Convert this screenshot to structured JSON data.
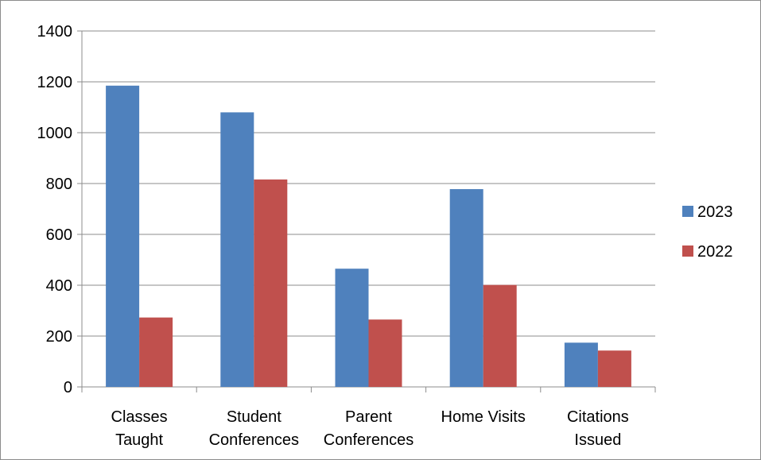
{
  "chart_data": {
    "type": "bar",
    "title": "",
    "xlabel": "",
    "ylabel": "",
    "ylim": [
      0,
      1400
    ],
    "yticks": [
      0,
      200,
      400,
      600,
      800,
      1000,
      1200,
      1400
    ],
    "grid": true,
    "legend_position": "right",
    "categories": [
      [
        "Classes",
        "Taught"
      ],
      [
        "Student",
        "Conferences"
      ],
      [
        "Parent",
        "Conferences"
      ],
      [
        "Home Visits"
      ],
      [
        "Citations",
        "Issued"
      ]
    ],
    "series": [
      {
        "name": "2023",
        "color": "#4f81bd",
        "values": [
          1185,
          1080,
          465,
          778,
          174
        ]
      },
      {
        "name": "2022",
        "color": "#c0504d",
        "values": [
          273,
          816,
          265,
          401,
          143
        ]
      }
    ]
  }
}
